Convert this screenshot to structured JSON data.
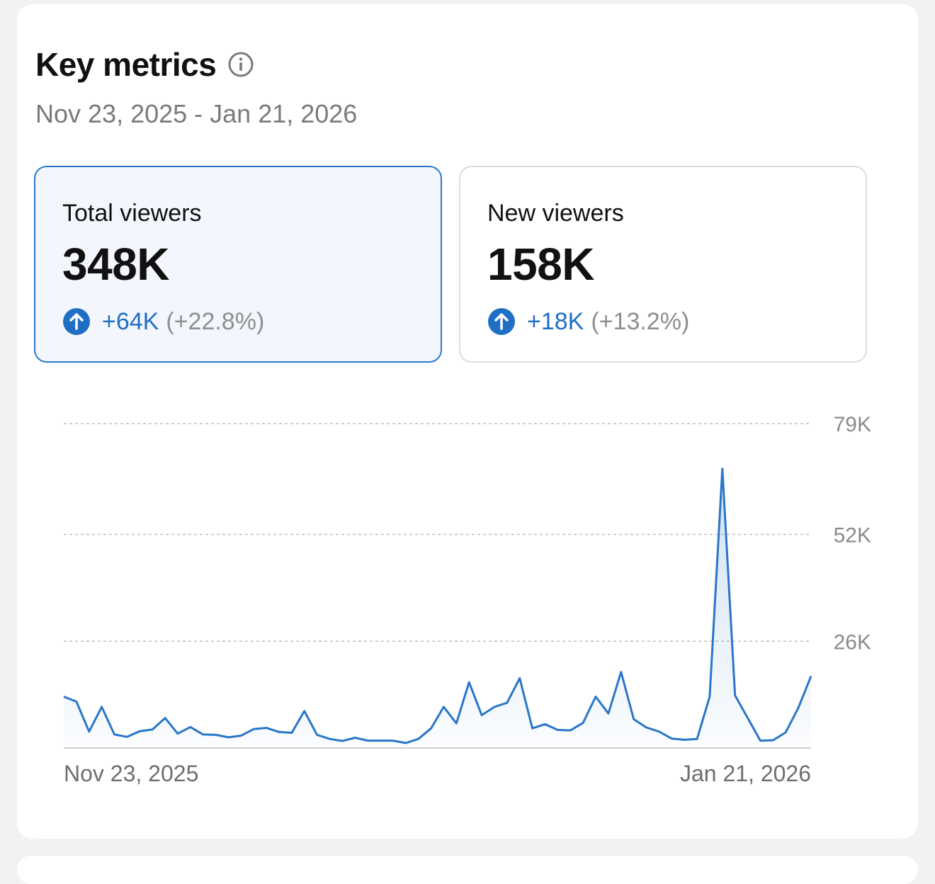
{
  "header": {
    "title": "Key metrics",
    "date_range": "Nov 23, 2025 - Jan 21, 2026"
  },
  "metrics": [
    {
      "label": "Total viewers",
      "value": "348K",
      "delta": "+64K",
      "delta_pct": "(+22.8%)",
      "selected": true
    },
    {
      "label": "New viewers",
      "value": "158K",
      "delta": "+18K",
      "delta_pct": "(+13.2%)",
      "selected": false
    }
  ],
  "colors": {
    "accent": "#2a76c8",
    "delta": "#1f6fc4",
    "muted": "#8a8a8a"
  },
  "chart_data": {
    "type": "area",
    "title": "Total viewers",
    "x_start_label": "Nov 23, 2025",
    "x_end_label": "Jan 21, 2026",
    "y_ticks": [
      {
        "value": 26000,
        "label": "26K"
      },
      {
        "value": 52000,
        "label": "52K"
      },
      {
        "value": 79000,
        "label": "79K"
      }
    ],
    "ylim": [
      0,
      79000
    ],
    "grid": true,
    "values": [
      12500,
      11300,
      4000,
      10000,
      3300,
      2700,
      4100,
      4500,
      7300,
      3500,
      5100,
      3300,
      3200,
      2600,
      3000,
      4600,
      4900,
      3900,
      3700,
      9000,
      3200,
      2200,
      1700,
      2500,
      1800,
      1800,
      1800,
      1200,
      2200,
      4800,
      10000,
      6000,
      16000,
      8000,
      10000,
      11000,
      17000,
      4800,
      5800,
      4400,
      4300,
      6100,
      12500,
      8400,
      18500,
      7000,
      5000,
      4000,
      2300,
      2000,
      2200,
      12500,
      68000,
      12800,
      7300,
      1800,
      1900,
      3800,
      9800,
      17500
    ]
  }
}
